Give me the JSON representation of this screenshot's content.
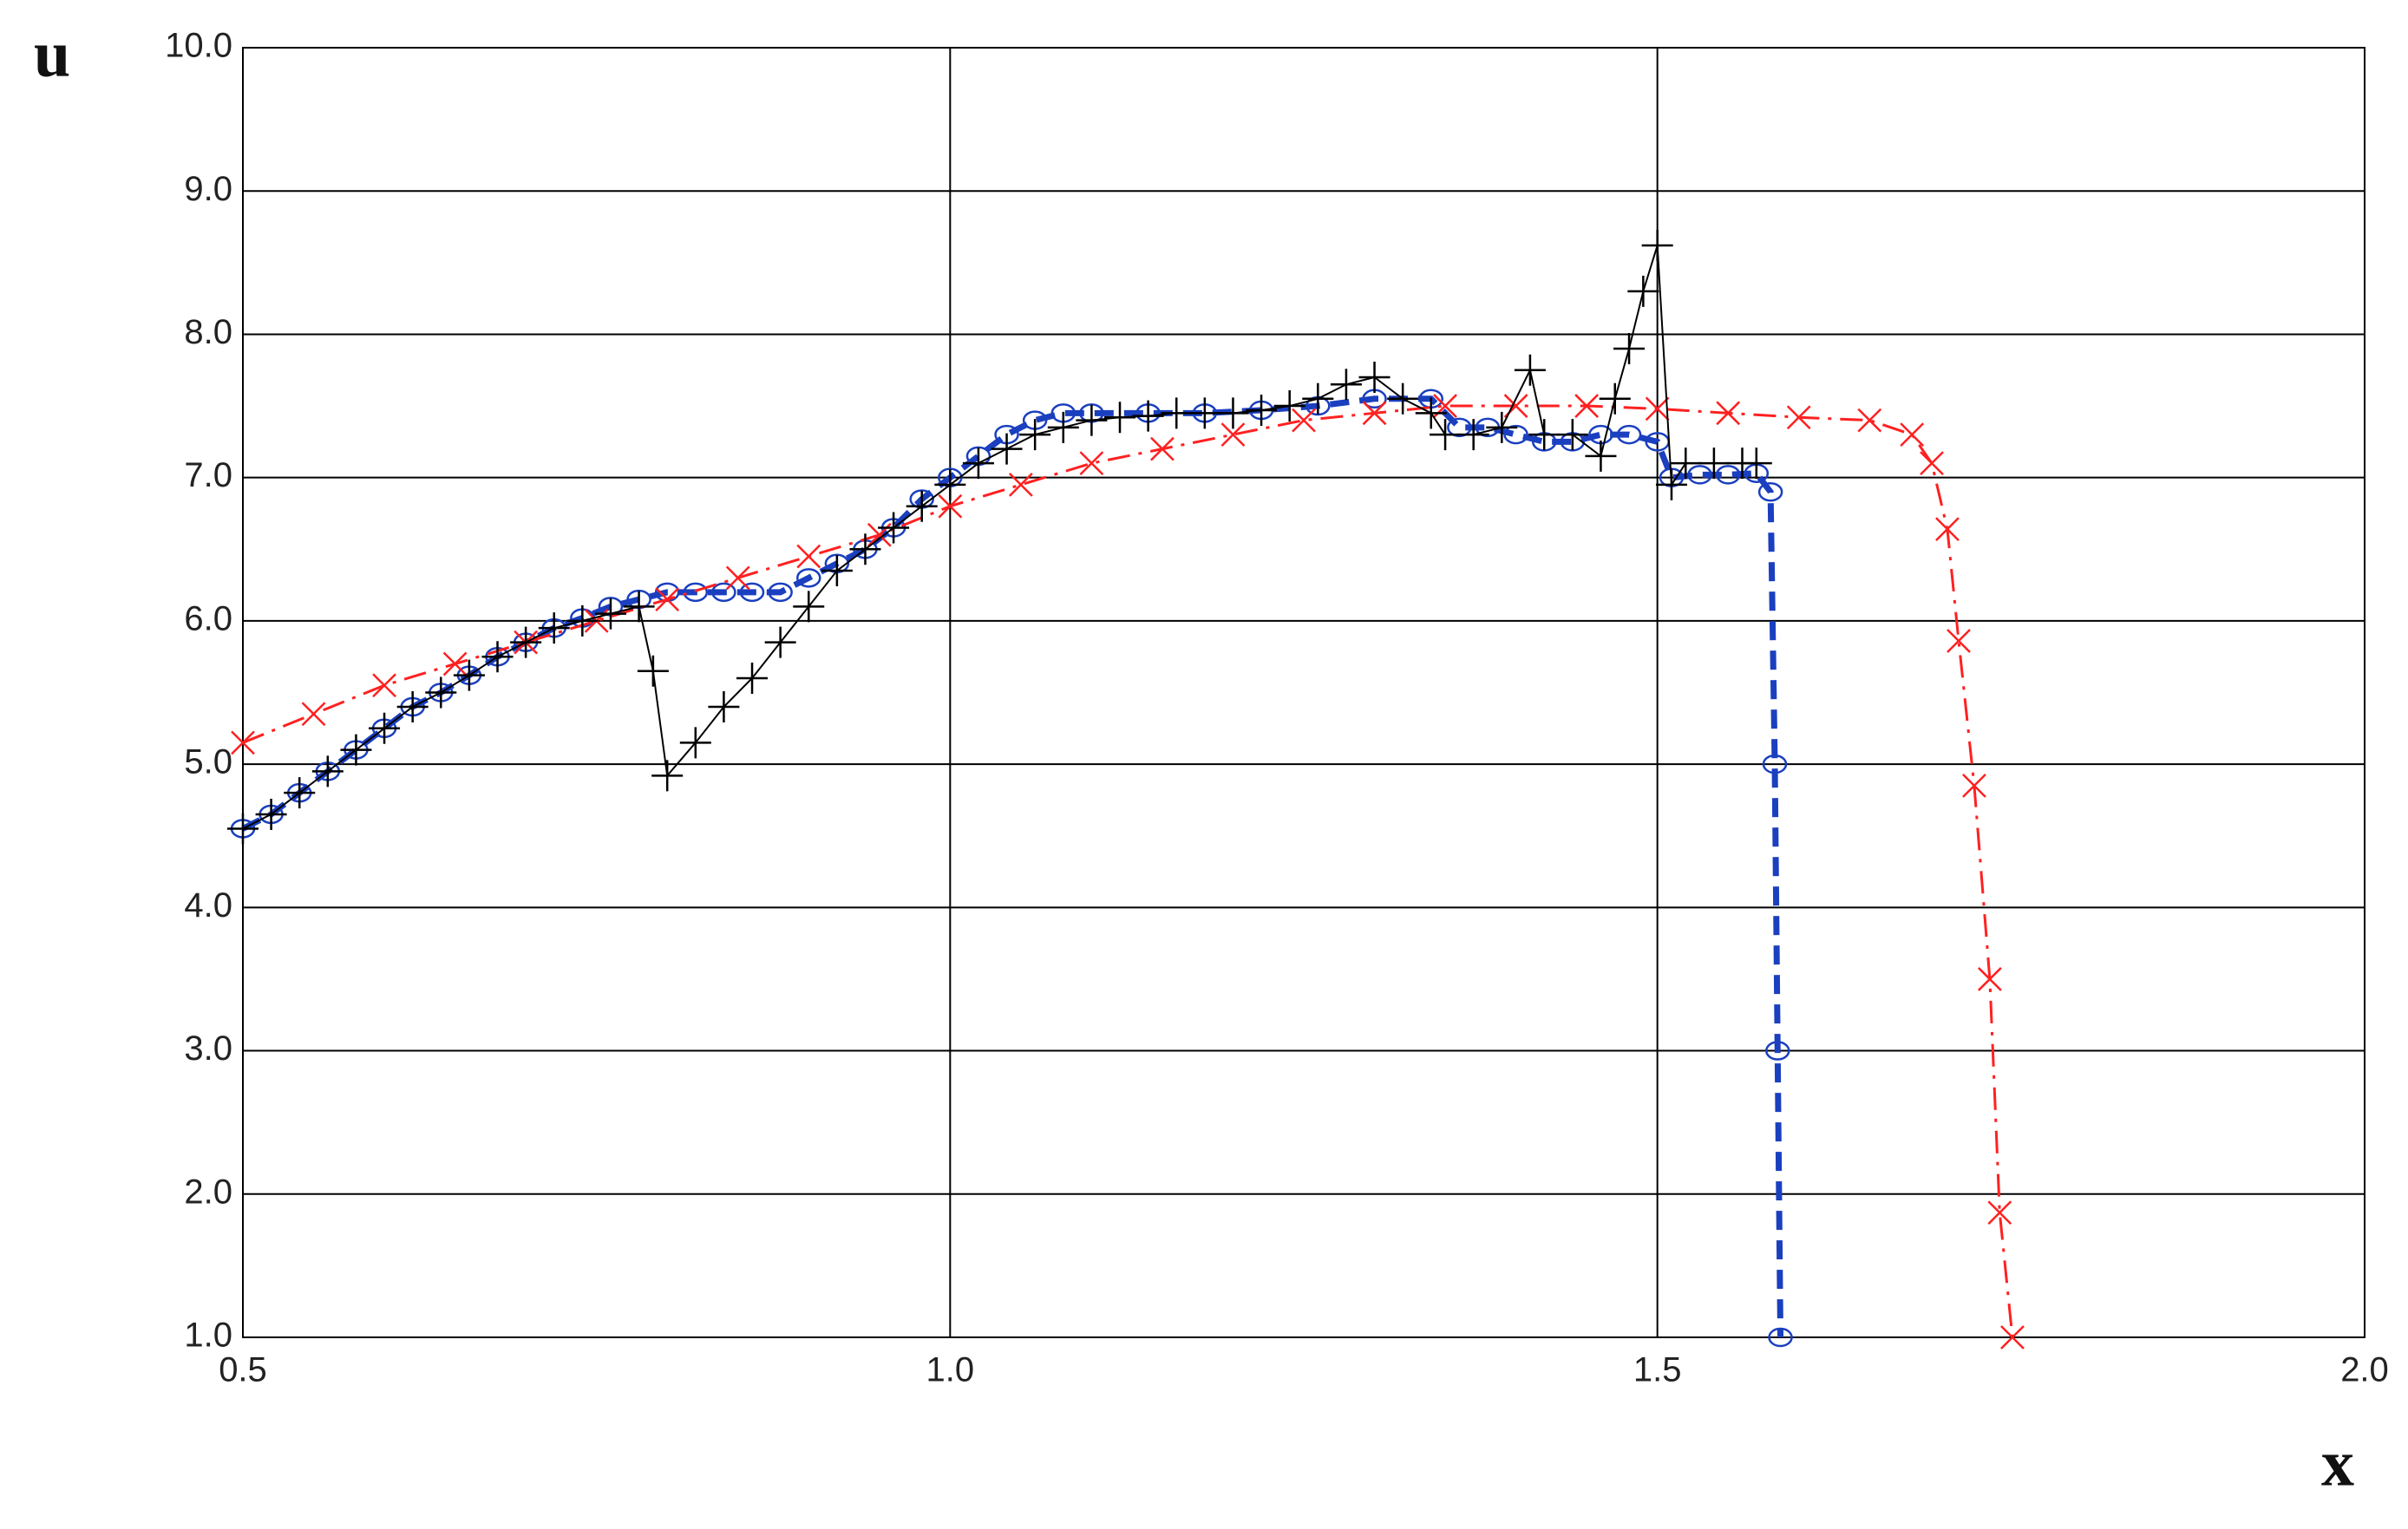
{
  "chart_data": {
    "type": "line",
    "x_label": "x",
    "y_label": "u",
    "xlim": [
      0.5,
      2.0
    ],
    "ylim": [
      1.0,
      10.0
    ],
    "xticks": [
      0.5,
      {
        "value": 1.0,
        "label": "1.0"
      },
      1.5,
      {
        "value": 2.0,
        "label": "2.0"
      }
    ],
    "yticks": [
      {
        "value": 1.0,
        "label": "1.0"
      },
      {
        "value": 2.0,
        "label": "2.0"
      },
      {
        "value": 3.0,
        "label": "3.0"
      },
      {
        "value": 4.0,
        "label": "4.0"
      },
      {
        "value": 5.0,
        "label": "5.0"
      },
      {
        "value": 6.0,
        "label": "6.0"
      },
      {
        "value": 7.0,
        "label": "7.0"
      },
      {
        "value": 8.0,
        "label": "8.0"
      },
      {
        "value": 9.0,
        "label": "9.0"
      },
      {
        "value": 10.0,
        "label": "10.0"
      }
    ],
    "grid": true,
    "series": [
      {
        "color": "#1a3fbf",
        "marker": "circle",
        "line": "dashed",
        "x": [
          0.5,
          0.52,
          0.54,
          0.56,
          0.58,
          0.6,
          0.62,
          0.64,
          0.66,
          0.68,
          0.7,
          0.72,
          0.74,
          0.76,
          0.78,
          0.8,
          0.82,
          0.84,
          0.86,
          0.88,
          0.9,
          0.92,
          0.94,
          0.96,
          0.98,
          1.0,
          1.02,
          1.04,
          1.06,
          1.08,
          1.1,
          1.14,
          1.18,
          1.22,
          1.26,
          1.3,
          1.34,
          1.36,
          1.38,
          1.4,
          1.42,
          1.44,
          1.46,
          1.48,
          1.5,
          1.51,
          1.53,
          1.55,
          1.57,
          1.58,
          1.583,
          1.585,
          1.587
        ],
        "values": [
          4.55,
          4.65,
          4.8,
          4.95,
          5.1,
          5.25,
          5.4,
          5.5,
          5.62,
          5.75,
          5.85,
          5.95,
          6.02,
          6.1,
          6.15,
          6.2,
          6.2,
          6.2,
          6.2,
          6.2,
          6.3,
          6.4,
          6.5,
          6.65,
          6.85,
          7.0,
          7.15,
          7.3,
          7.4,
          7.45,
          7.45,
          7.45,
          7.45,
          7.47,
          7.5,
          7.55,
          7.55,
          7.35,
          7.35,
          7.3,
          7.25,
          7.25,
          7.3,
          7.3,
          7.25,
          7.0,
          7.02,
          7.02,
          7.03,
          6.9,
          5.0,
          3.0,
          1.0
        ]
      },
      {
        "color": "#ff2020",
        "marker": "cross",
        "line": "dashdot",
        "x": [
          0.5,
          0.55,
          0.6,
          0.65,
          0.7,
          0.75,
          0.8,
          0.85,
          0.9,
          0.95,
          1.0,
          1.05,
          1.1,
          1.15,
          1.2,
          1.25,
          1.3,
          1.35,
          1.4,
          1.45,
          1.5,
          1.55,
          1.6,
          1.65,
          1.68,
          1.694,
          1.705,
          1.713,
          1.724,
          1.735,
          1.742,
          1.751
        ],
        "values": [
          5.15,
          5.35,
          5.55,
          5.7,
          5.85,
          6.0,
          6.15,
          6.3,
          6.45,
          6.6,
          6.8,
          6.95,
          7.1,
          7.2,
          7.3,
          7.4,
          7.45,
          7.5,
          7.5,
          7.5,
          7.48,
          7.45,
          7.42,
          7.4,
          7.3,
          7.1,
          6.64,
          5.86,
          4.85,
          3.5,
          1.87,
          1.0
        ]
      },
      {
        "color": "#000000",
        "marker": "plus",
        "line": "solid",
        "x": [
          0.5,
          0.52,
          0.54,
          0.56,
          0.58,
          0.6,
          0.62,
          0.64,
          0.66,
          0.68,
          0.7,
          0.72,
          0.74,
          0.76,
          0.78,
          0.79,
          0.8,
          0.82,
          0.84,
          0.86,
          0.88,
          0.9,
          0.92,
          0.94,
          0.96,
          0.98,
          1.0,
          1.02,
          1.04,
          1.06,
          1.08,
          1.1,
          1.12,
          1.14,
          1.16,
          1.18,
          1.2,
          1.22,
          1.24,
          1.26,
          1.28,
          1.3,
          1.32,
          1.34,
          1.35,
          1.37,
          1.39,
          1.41,
          1.42,
          1.44,
          1.46,
          1.47,
          1.48,
          1.49,
          1.5,
          1.51,
          1.52,
          1.54,
          1.56,
          1.57
        ],
        "values": [
          4.55,
          4.65,
          4.8,
          4.95,
          5.1,
          5.25,
          5.4,
          5.5,
          5.62,
          5.75,
          5.85,
          5.95,
          6.0,
          6.05,
          6.1,
          5.65,
          4.92,
          5.15,
          5.4,
          5.6,
          5.85,
          6.1,
          6.35,
          6.5,
          6.65,
          6.8,
          6.95,
          7.1,
          7.2,
          7.3,
          7.35,
          7.4,
          7.42,
          7.43,
          7.45,
          7.45,
          7.45,
          7.47,
          7.5,
          7.55,
          7.65,
          7.7,
          7.55,
          7.45,
          7.3,
          7.3,
          7.35,
          7.75,
          7.3,
          7.3,
          7.15,
          7.55,
          7.9,
          8.3,
          8.62,
          6.95,
          7.1,
          7.1,
          7.1,
          7.1
        ]
      }
    ]
  }
}
